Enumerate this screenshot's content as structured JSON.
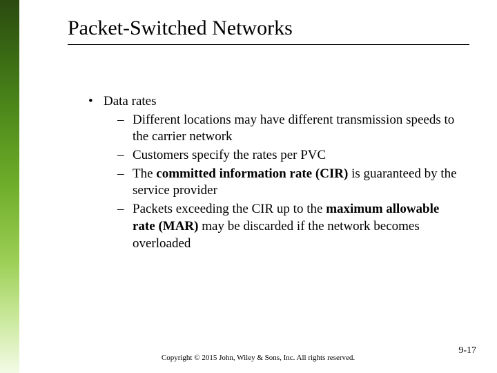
{
  "title": "Packet-Switched Networks",
  "bullets": {
    "top": "Data rates",
    "sub1": "Different locations may have different transmission speeds to the carrier network",
    "sub2": "Customers specify the rates per PVC",
    "sub3_pre": "The ",
    "sub3_bold": "committed information rate (CIR)",
    "sub3_post": " is guaranteed by the service provider",
    "sub4_pre": "Packets exceeding the CIR up to the ",
    "sub4_bold": "maximum allowable rate (MAR)",
    "sub4_post": " may be discarded if the network becomes overloaded"
  },
  "footer": {
    "copyright": "Copyright © 2015 John, Wiley & Sons, Inc. All rights reserved.",
    "page": "9-17"
  }
}
